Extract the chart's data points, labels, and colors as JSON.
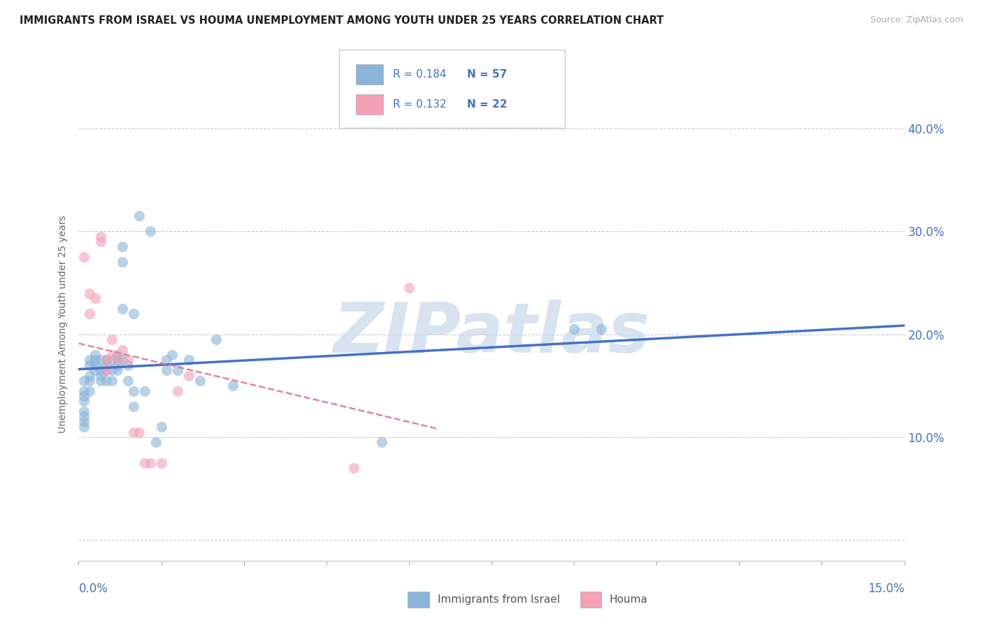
{
  "title": "IMMIGRANTS FROM ISRAEL VS HOUMA UNEMPLOYMENT AMONG YOUTH UNDER 25 YEARS CORRELATION CHART",
  "source": "Source: ZipAtlas.com",
  "ylabel": "Unemployment Among Youth under 25 years",
  "xlim": [
    0,
    0.15
  ],
  "ylim": [
    -0.02,
    0.44
  ],
  "yticks": [
    0.0,
    0.1,
    0.2,
    0.3,
    0.4
  ],
  "ytick_labels": [
    "",
    "10.0%",
    "20.0%",
    "30.0%",
    "40.0%"
  ],
  "legend_r1": "R = 0.184",
  "legend_n1": "N = 57",
  "legend_r2": "R = 0.132",
  "legend_n2": "N = 22",
  "blue_color": "#8ab4d8",
  "pink_color": "#f4a0b5",
  "trend_blue": "#4472c4",
  "trend_pink": "#e8829a",
  "label_color": "#4472c4",
  "blue_dots": [
    [
      0.001,
      0.155
    ],
    [
      0.001,
      0.145
    ],
    [
      0.001,
      0.14
    ],
    [
      0.001,
      0.135
    ],
    [
      0.001,
      0.125
    ],
    [
      0.001,
      0.12
    ],
    [
      0.001,
      0.115
    ],
    [
      0.001,
      0.11
    ],
    [
      0.002,
      0.16
    ],
    [
      0.002,
      0.17
    ],
    [
      0.002,
      0.175
    ],
    [
      0.002,
      0.155
    ],
    [
      0.002,
      0.145
    ],
    [
      0.003,
      0.17
    ],
    [
      0.003,
      0.165
    ],
    [
      0.003,
      0.18
    ],
    [
      0.003,
      0.175
    ],
    [
      0.004,
      0.175
    ],
    [
      0.004,
      0.165
    ],
    [
      0.004,
      0.16
    ],
    [
      0.004,
      0.155
    ],
    [
      0.005,
      0.175
    ],
    [
      0.005,
      0.17
    ],
    [
      0.005,
      0.165
    ],
    [
      0.005,
      0.155
    ],
    [
      0.006,
      0.175
    ],
    [
      0.006,
      0.165
    ],
    [
      0.006,
      0.155
    ],
    [
      0.007,
      0.175
    ],
    [
      0.007,
      0.17
    ],
    [
      0.007,
      0.165
    ],
    [
      0.007,
      0.18
    ],
    [
      0.008,
      0.285
    ],
    [
      0.008,
      0.27
    ],
    [
      0.008,
      0.225
    ],
    [
      0.008,
      0.175
    ],
    [
      0.009,
      0.17
    ],
    [
      0.009,
      0.155
    ],
    [
      0.01,
      0.145
    ],
    [
      0.01,
      0.13
    ],
    [
      0.01,
      0.22
    ],
    [
      0.011,
      0.315
    ],
    [
      0.012,
      0.145
    ],
    [
      0.013,
      0.3
    ],
    [
      0.014,
      0.095
    ],
    [
      0.015,
      0.11
    ],
    [
      0.016,
      0.175
    ],
    [
      0.016,
      0.165
    ],
    [
      0.017,
      0.18
    ],
    [
      0.018,
      0.165
    ],
    [
      0.02,
      0.175
    ],
    [
      0.022,
      0.155
    ],
    [
      0.025,
      0.195
    ],
    [
      0.028,
      0.15
    ],
    [
      0.055,
      0.095
    ],
    [
      0.09,
      0.205
    ],
    [
      0.095,
      0.205
    ]
  ],
  "pink_dots": [
    [
      0.001,
      0.275
    ],
    [
      0.002,
      0.24
    ],
    [
      0.002,
      0.22
    ],
    [
      0.003,
      0.235
    ],
    [
      0.004,
      0.295
    ],
    [
      0.004,
      0.29
    ],
    [
      0.005,
      0.175
    ],
    [
      0.005,
      0.165
    ],
    [
      0.006,
      0.195
    ],
    [
      0.006,
      0.18
    ],
    [
      0.007,
      0.175
    ],
    [
      0.008,
      0.185
    ],
    [
      0.009,
      0.175
    ],
    [
      0.01,
      0.105
    ],
    [
      0.011,
      0.105
    ],
    [
      0.012,
      0.075
    ],
    [
      0.013,
      0.075
    ],
    [
      0.015,
      0.075
    ],
    [
      0.018,
      0.145
    ],
    [
      0.02,
      0.16
    ],
    [
      0.05,
      0.07
    ],
    [
      0.06,
      0.245
    ]
  ],
  "watermark": "ZIPatlas",
  "watermark_color": "#c8d8ea",
  "watermark_fontsize": 72
}
